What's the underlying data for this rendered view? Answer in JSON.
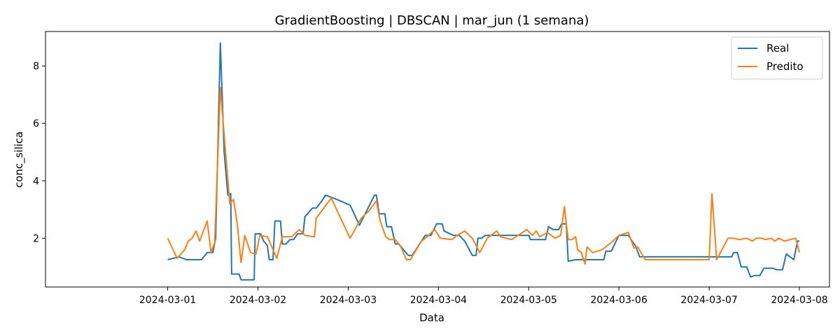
{
  "chart_data": {
    "type": "line",
    "title": "GradientBoosting | DBSCAN | mar_jun (1 semana)",
    "xlabel": "Data",
    "ylabel": "conc_silica",
    "xlim": [
      "2024-02-28T15:30",
      "2024-03-08T08:00"
    ],
    "ylim": [
      0.3,
      9.2
    ],
    "x_ticks": [
      "2024-03-01",
      "2024-03-02",
      "2024-03-03",
      "2024-03-04",
      "2024-03-05",
      "2024-03-06",
      "2024-03-07",
      "2024-03-08"
    ],
    "y_ticks": [
      2,
      4,
      6,
      8
    ],
    "legend_position": "top-right",
    "grid": false,
    "series": [
      {
        "name": "Real",
        "color": "#1f77b4",
        "points": [
          [
            "2024-03-01T00:00",
            1.25
          ],
          [
            "2024-03-01T03:00",
            1.35
          ],
          [
            "2024-03-01T05:00",
            1.25
          ],
          [
            "2024-03-01T07:00",
            1.25
          ],
          [
            "2024-03-01T09:00",
            1.25
          ],
          [
            "2024-03-01T10:30",
            1.5
          ],
          [
            "2024-03-01T12:00",
            1.5
          ],
          [
            "2024-03-01T12:45",
            2.0
          ],
          [
            "2024-03-01T14:00",
            8.8
          ],
          [
            "2024-03-01T15:00",
            5.0
          ],
          [
            "2024-03-01T16:00",
            3.5
          ],
          [
            "2024-03-01T16:45",
            3.55
          ],
          [
            "2024-03-01T17:00",
            0.75
          ],
          [
            "2024-03-01T19:00",
            0.75
          ],
          [
            "2024-03-01T19:30",
            0.55
          ],
          [
            "2024-03-01T23:00",
            0.55
          ],
          [
            "2024-03-01T23:15",
            2.15
          ],
          [
            "2024-03-02T00:45",
            2.15
          ],
          [
            "2024-03-02T01:30",
            1.9
          ],
          [
            "2024-03-02T02:30",
            1.75
          ],
          [
            "2024-03-02T03:00",
            1.25
          ],
          [
            "2024-03-02T04:00",
            1.25
          ],
          [
            "2024-03-02T04:30",
            2.6
          ],
          [
            "2024-03-02T06:00",
            2.6
          ],
          [
            "2024-03-02T06:30",
            1.8
          ],
          [
            "2024-03-02T07:30",
            1.8
          ],
          [
            "2024-03-02T08:30",
            1.95
          ],
          [
            "2024-03-02T09:30",
            1.95
          ],
          [
            "2024-03-02T10:30",
            2.15
          ],
          [
            "2024-03-02T12:00",
            2.15
          ],
          [
            "2024-03-02T12:30",
            2.75
          ],
          [
            "2024-03-02T14:30",
            3.05
          ],
          [
            "2024-03-02T15:30",
            3.05
          ],
          [
            "2024-03-02T17:00",
            3.3
          ],
          [
            "2024-03-02T18:00",
            3.5
          ],
          [
            "2024-03-02T21:00",
            3.35
          ],
          [
            "2024-03-03T00:30",
            3.15
          ],
          [
            "2024-03-03T03:00",
            2.45
          ],
          [
            "2024-03-03T07:00",
            3.5
          ],
          [
            "2024-03-03T07:30",
            3.5
          ],
          [
            "2024-03-03T08:15",
            2.85
          ],
          [
            "2024-03-03T09:45",
            2.85
          ],
          [
            "2024-03-03T10:15",
            2.4
          ],
          [
            "2024-03-03T11:30",
            2.4
          ],
          [
            "2024-03-03T12:30",
            1.8
          ],
          [
            "2024-03-03T13:30",
            1.8
          ],
          [
            "2024-03-03T15:00",
            1.55
          ],
          [
            "2024-03-03T16:00",
            1.4
          ],
          [
            "2024-03-03T17:00",
            1.4
          ],
          [
            "2024-03-03T20:30",
            2.1
          ],
          [
            "2024-03-03T22:00",
            2.1
          ],
          [
            "2024-03-03T23:30",
            2.5
          ],
          [
            "2024-03-04T01:00",
            2.5
          ],
          [
            "2024-03-04T01:30",
            2.25
          ],
          [
            "2024-03-04T04:00",
            2.1
          ],
          [
            "2024-03-04T05:30",
            2.1
          ],
          [
            "2024-03-04T07:00",
            1.9
          ],
          [
            "2024-03-04T09:00",
            1.4
          ],
          [
            "2024-03-04T10:00",
            1.4
          ],
          [
            "2024-03-04T10:30",
            2.0
          ],
          [
            "2024-03-04T11:30",
            2.0
          ],
          [
            "2024-03-04T12:30",
            2.1
          ],
          [
            "2024-03-04T14:00",
            2.1
          ],
          [
            "2024-03-04T21:00",
            2.1
          ],
          [
            "2024-03-05T00:00",
            2.1
          ],
          [
            "2024-03-05T00:30",
            1.95
          ],
          [
            "2024-03-05T02:30",
            1.95
          ],
          [
            "2024-03-05T04:30",
            1.95
          ],
          [
            "2024-03-05T05:15",
            2.4
          ],
          [
            "2024-03-05T06:30",
            2.3
          ],
          [
            "2024-03-05T08:00",
            2.3
          ],
          [
            "2024-03-05T08:45",
            2.5
          ],
          [
            "2024-03-05T10:00",
            2.5
          ],
          [
            "2024-03-05T10:30",
            1.2
          ],
          [
            "2024-03-05T12:30",
            1.25
          ],
          [
            "2024-03-05T15:00",
            1.25
          ],
          [
            "2024-03-05T20:00",
            1.25
          ],
          [
            "2024-03-05T20:30",
            1.55
          ],
          [
            "2024-03-05T22:00",
            1.55
          ],
          [
            "2024-03-06T00:00",
            2.1
          ],
          [
            "2024-03-06T01:00",
            2.1
          ],
          [
            "2024-03-06T02:30",
            2.1
          ],
          [
            "2024-03-06T04:30",
            1.7
          ],
          [
            "2024-03-06T05:30",
            1.35
          ],
          [
            "2024-03-06T07:00",
            1.35
          ],
          [
            "2024-03-06T12:00",
            1.35
          ],
          [
            "2024-03-07T00:00",
            1.35
          ],
          [
            "2024-03-07T06:00",
            1.35
          ],
          [
            "2024-03-07T06:30",
            1.5
          ],
          [
            "2024-03-07T07:30",
            1.5
          ],
          [
            "2024-03-07T08:30",
            1.0
          ],
          [
            "2024-03-07T10:00",
            1.0
          ],
          [
            "2024-03-07T11:00",
            0.65
          ],
          [
            "2024-03-07T12:00",
            0.7
          ],
          [
            "2024-03-07T13:30",
            0.7
          ],
          [
            "2024-03-07T14:30",
            0.95
          ],
          [
            "2024-03-07T17:00",
            0.95
          ],
          [
            "2024-03-07T18:00",
            0.9
          ],
          [
            "2024-03-07T19:30",
            0.9
          ],
          [
            "2024-03-07T20:30",
            1.45
          ],
          [
            "2024-03-07T22:30",
            1.25
          ],
          [
            "2024-03-07T23:30",
            1.9
          ],
          [
            "2024-03-08T00:00",
            1.9
          ]
        ]
      },
      {
        "name": "Predito",
        "color": "#ff7f0e",
        "points": [
          [
            "2024-03-01T00:00",
            2.0
          ],
          [
            "2024-03-01T02:30",
            1.3
          ],
          [
            "2024-03-01T04:30",
            1.6
          ],
          [
            "2024-03-01T05:30",
            1.9
          ],
          [
            "2024-03-01T06:30",
            2.0
          ],
          [
            "2024-03-01T07:30",
            2.25
          ],
          [
            "2024-03-01T08:30",
            1.9
          ],
          [
            "2024-03-01T10:30",
            2.6
          ],
          [
            "2024-03-01T11:30",
            1.5
          ],
          [
            "2024-03-01T12:30",
            1.85
          ],
          [
            "2024-03-01T14:00",
            7.25
          ],
          [
            "2024-03-01T16:30",
            3.2
          ],
          [
            "2024-03-01T17:30",
            3.35
          ],
          [
            "2024-03-01T18:30",
            2.5
          ],
          [
            "2024-03-01T19:30",
            1.15
          ],
          [
            "2024-03-01T20:30",
            2.1
          ],
          [
            "2024-03-01T22:00",
            1.5
          ],
          [
            "2024-03-01T23:30",
            1.45
          ],
          [
            "2024-03-02T00:30",
            2.1
          ],
          [
            "2024-03-02T02:30",
            2.05
          ],
          [
            "2024-03-02T05:00",
            1.3
          ],
          [
            "2024-03-02T06:30",
            2.05
          ],
          [
            "2024-03-02T09:00",
            2.05
          ],
          [
            "2024-03-02T11:00",
            2.3
          ],
          [
            "2024-03-02T12:30",
            2.1
          ],
          [
            "2024-03-02T15:00",
            2.05
          ],
          [
            "2024-03-02T15:30",
            2.7
          ],
          [
            "2024-03-02T19:30",
            3.4
          ],
          [
            "2024-03-03T00:30",
            2.0
          ],
          [
            "2024-03-03T03:30",
            2.7
          ],
          [
            "2024-03-03T05:30",
            2.95
          ],
          [
            "2024-03-03T07:30",
            3.3
          ],
          [
            "2024-03-03T08:30",
            2.6
          ],
          [
            "2024-03-03T10:00",
            2.05
          ],
          [
            "2024-03-03T11:00",
            1.95
          ],
          [
            "2024-03-03T12:30",
            1.95
          ],
          [
            "2024-03-03T14:00",
            1.7
          ],
          [
            "2024-03-03T15:30",
            1.25
          ],
          [
            "2024-03-03T16:30",
            1.25
          ],
          [
            "2024-03-03T19:30",
            1.9
          ],
          [
            "2024-03-03T20:30",
            2.0
          ],
          [
            "2024-03-03T23:00",
            2.3
          ],
          [
            "2024-03-04T00:30",
            2.0
          ],
          [
            "2024-03-04T03:30",
            1.95
          ],
          [
            "2024-03-04T05:00",
            2.1
          ],
          [
            "2024-03-04T07:00",
            2.25
          ],
          [
            "2024-03-04T09:00",
            2.0
          ],
          [
            "2024-03-04T11:00",
            1.5
          ],
          [
            "2024-03-04T13:00",
            2.0
          ],
          [
            "2024-03-04T15:30",
            2.25
          ],
          [
            "2024-03-04T16:30",
            2.05
          ],
          [
            "2024-03-04T19:30",
            1.95
          ],
          [
            "2024-03-04T23:30",
            2.3
          ],
          [
            "2024-03-05T01:00",
            2.1
          ],
          [
            "2024-03-05T02:00",
            2.25
          ],
          [
            "2024-03-05T03:00",
            2.05
          ],
          [
            "2024-03-05T05:00",
            2.2
          ],
          [
            "2024-03-05T07:00",
            2.0
          ],
          [
            "2024-03-05T08:30",
            2.1
          ],
          [
            "2024-03-05T09:30",
            3.1
          ],
          [
            "2024-03-05T10:30",
            1.95
          ],
          [
            "2024-03-05T11:30",
            1.95
          ],
          [
            "2024-03-05T12:30",
            2.05
          ],
          [
            "2024-03-05T13:00",
            1.6
          ],
          [
            "2024-03-05T14:00",
            1.5
          ],
          [
            "2024-03-05T15:00",
            1.1
          ],
          [
            "2024-03-05T15:30",
            1.7
          ],
          [
            "2024-03-05T17:00",
            1.5
          ],
          [
            "2024-03-05T19:30",
            1.6
          ],
          [
            "2024-03-05T22:00",
            1.85
          ],
          [
            "2024-03-06T00:00",
            2.1
          ],
          [
            "2024-03-06T02:30",
            2.2
          ],
          [
            "2024-03-06T04:00",
            1.65
          ],
          [
            "2024-03-06T05:00",
            1.7
          ],
          [
            "2024-03-06T07:00",
            1.25
          ],
          [
            "2024-03-06T12:00",
            1.25
          ],
          [
            "2024-03-06T21:00",
            1.25
          ],
          [
            "2024-03-06T22:00",
            1.25
          ],
          [
            "2024-03-07T00:00",
            1.25
          ],
          [
            "2024-03-07T00:45",
            3.55
          ],
          [
            "2024-03-07T02:00",
            1.25
          ],
          [
            "2024-03-07T05:00",
            2.0
          ],
          [
            "2024-03-07T06:30",
            2.0
          ],
          [
            "2024-03-07T08:00",
            1.95
          ],
          [
            "2024-03-07T10:00",
            2.0
          ],
          [
            "2024-03-07T11:30",
            1.9
          ],
          [
            "2024-03-07T12:30",
            2.0
          ],
          [
            "2024-03-07T14:00",
            2.0
          ],
          [
            "2024-03-07T15:00",
            1.95
          ],
          [
            "2024-03-07T16:30",
            2.0
          ],
          [
            "2024-03-07T17:30",
            1.9
          ],
          [
            "2024-03-07T18:30",
            2.0
          ],
          [
            "2024-03-07T20:00",
            1.9
          ],
          [
            "2024-03-07T23:00",
            2.0
          ],
          [
            "2024-03-08T00:00",
            1.5
          ]
        ]
      }
    ]
  }
}
